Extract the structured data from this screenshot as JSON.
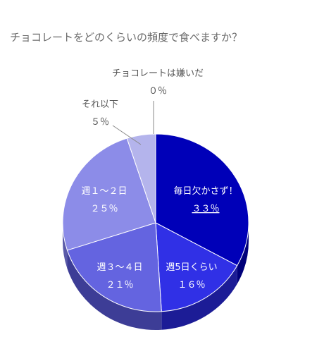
{
  "chart_data": {
    "type": "pie",
    "title": "チョコレートをどのくらいの頻度で食べますか？",
    "slices": [
      {
        "label": "毎日欠かさず！",
        "value": 33,
        "value_text": "３３％",
        "color": "#0000b8",
        "side": "#00007a"
      },
      {
        "label": "週5日くらい",
        "value": 16,
        "value_text": "１６％",
        "color": "#3030e6",
        "side": "#1c1c96"
      },
      {
        "label": "週３～４日",
        "value": 21,
        "value_text": "２１％",
        "color": "#6464e0",
        "side": "#3d3d96"
      },
      {
        "label": "週１～２日",
        "value": 25,
        "value_text": "２５％",
        "color": "#8c8ce8",
        "side": "#5a5aa8"
      },
      {
        "label": "それ以下",
        "value": 5,
        "value_text": "５％",
        "color": "#b4b4ec",
        "side": "#7a7ab0"
      },
      {
        "label": "チョコレートは嫌いだ",
        "value": 0,
        "value_text": "０％",
        "color": "#d0d0f4",
        "side": "#9090c0"
      }
    ]
  }
}
